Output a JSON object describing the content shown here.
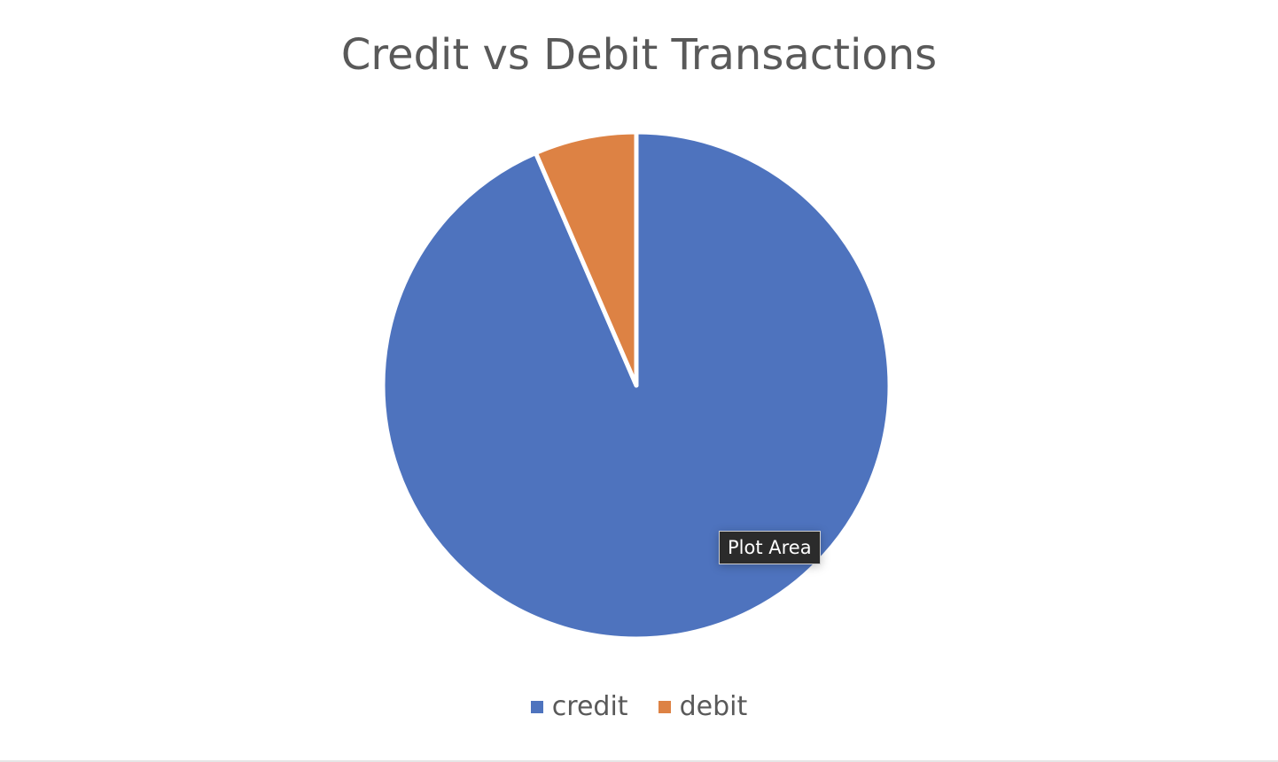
{
  "chart_data": {
    "type": "pie",
    "title": "Credit vs Debit Transactions",
    "categories": [
      "credit",
      "debit"
    ],
    "values": [
      93.5,
      6.5
    ],
    "colors": [
      "#4E73BE",
      "#DD8244"
    ],
    "legend_position": "bottom"
  },
  "tooltip": {
    "text": "Plot Area"
  }
}
